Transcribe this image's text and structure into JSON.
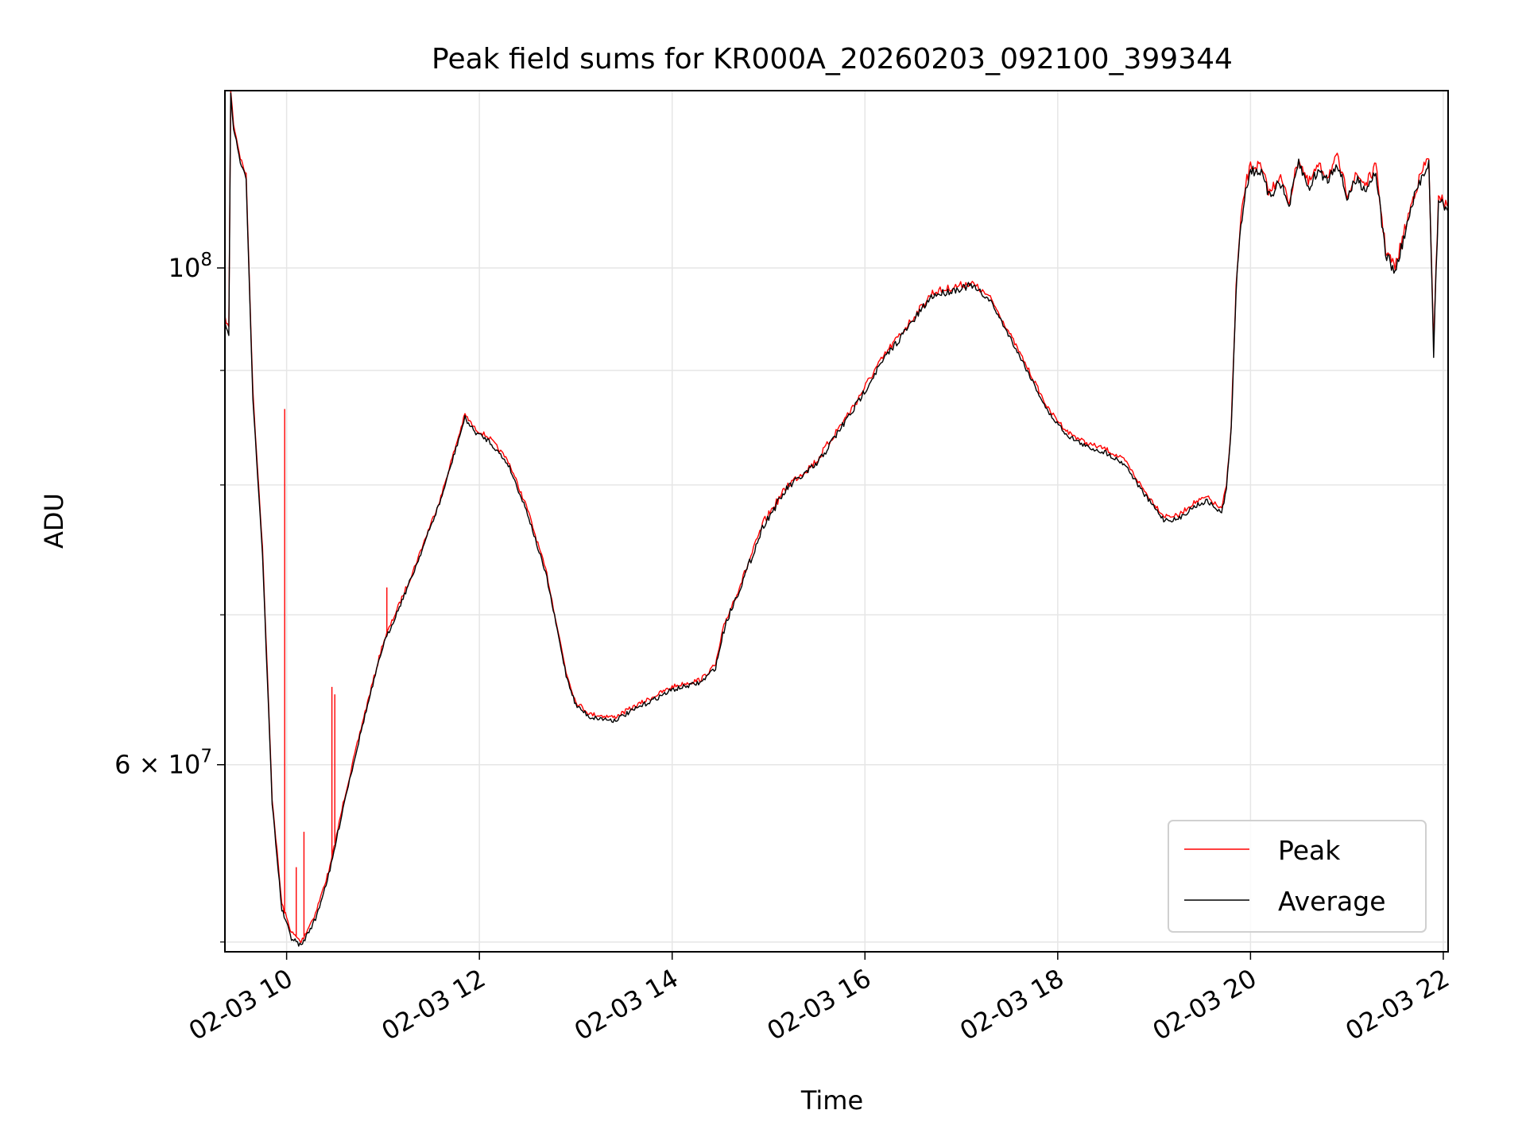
{
  "chart_data": {
    "type": "line",
    "title": "Peak field sums for KR000A_20260203_092100_399344",
    "xlabel": "Time",
    "ylabel": "ADU",
    "yscale": "log",
    "xlim": [
      9.36,
      22.05
    ],
    "ylim": [
      49500000,
      120000000
    ],
    "grid": true,
    "legend_position": "lower-right",
    "x_ticks": [
      {
        "value": 10,
        "label": "02-03 10"
      },
      {
        "value": 12,
        "label": "02-03 12"
      },
      {
        "value": 14,
        "label": "02-03 14"
      },
      {
        "value": 16,
        "label": "02-03 16"
      },
      {
        "value": 18,
        "label": "02-03 18"
      },
      {
        "value": 20,
        "label": "02-03 20"
      },
      {
        "value": 22,
        "label": "02-03 22"
      }
    ],
    "y_ticks": [
      {
        "value": 60000000,
        "base": "6 × 10",
        "exp": "7"
      },
      {
        "value": 100000000,
        "base": "10",
        "exp": "8"
      }
    ],
    "y_minor_ticks": [
      50000000,
      70000000,
      80000000,
      90000000
    ],
    "x_unit": "hours on 02-03",
    "series": [
      {
        "name": "Peak",
        "color": "#ff0000",
        "x": [
          9.36,
          9.4,
          9.42,
          9.45,
          9.52,
          9.58,
          9.65,
          9.75,
          9.85,
          9.95,
          10.05,
          10.15,
          10.3,
          10.45,
          10.6,
          10.8,
          11.0,
          11.3,
          11.6,
          11.85,
          11.95,
          12.1,
          12.3,
          12.5,
          12.7,
          12.9,
          13.0,
          13.15,
          13.4,
          13.7,
          14.0,
          14.3,
          14.45,
          14.55,
          14.75,
          14.95,
          15.2,
          15.5,
          15.7,
          15.9,
          16.1,
          16.25,
          16.5,
          16.7,
          16.9,
          17.1,
          17.3,
          17.5,
          17.7,
          17.9,
          18.1,
          18.3,
          18.5,
          18.7,
          18.9,
          19.1,
          19.25,
          19.4,
          19.55,
          19.7,
          19.75,
          19.8,
          19.85,
          19.9,
          19.95,
          20.0,
          20.1,
          20.2,
          20.3,
          20.4,
          20.5,
          20.6,
          20.7,
          20.8,
          20.9,
          21.0,
          21.1,
          21.2,
          21.3,
          21.4,
          21.5,
          21.6,
          21.7,
          21.8,
          21.85,
          21.9,
          21.95,
          22.0,
          22.05
        ],
        "values": [
          95000000,
          94000000,
          120000000,
          116000000,
          112000000,
          110000000,
          88000000,
          75000000,
          58000000,
          52000000,
          50500000,
          50000000,
          51500000,
          54000000,
          58000000,
          63000000,
          68000000,
          73000000,
          79000000,
          86000000,
          84800000,
          84000000,
          82000000,
          78000000,
          73000000,
          66000000,
          64000000,
          63200000,
          63000000,
          64000000,
          65000000,
          65500000,
          66500000,
          69500000,
          73000000,
          77000000,
          80000000,
          82000000,
          84500000,
          87000000,
          90000000,
          92000000,
          95000000,
          97500000,
          98000000,
          98500000,
          97000000,
          93500000,
          90000000,
          86500000,
          84500000,
          83500000,
          83000000,
          82000000,
          79500000,
          77500000,
          77500000,
          78500000,
          79000000,
          78000000,
          80000000,
          85000000,
          98000000,
          105000000,
          109000000,
          111000000,
          111000000,
          108000000,
          110000000,
          107000000,
          112000000,
          109000000,
          111000000,
          110000000,
          112000000,
          108000000,
          110000000,
          109000000,
          111000000,
          102000000,
          100000000,
          104000000,
          108000000,
          111000000,
          112000000,
          92000000,
          108000000,
          107000000,
          106500000
        ],
        "spikes": [
          {
            "x": 9.98,
            "peak": 86500000
          },
          {
            "x": 10.1,
            "peak": 54000000
          },
          {
            "x": 10.18,
            "peak": 56000000
          },
          {
            "x": 10.47,
            "peak": 65000000
          },
          {
            "x": 10.5,
            "peak": 64500000
          },
          {
            "x": 11.04,
            "peak": 72000000
          }
        ]
      },
      {
        "name": "Average",
        "color": "#000000",
        "x": [
          9.36,
          9.4,
          9.42,
          9.45,
          9.52,
          9.58,
          9.65,
          9.75,
          9.85,
          9.95,
          10.05,
          10.15,
          10.3,
          10.45,
          10.6,
          10.8,
          11.0,
          11.3,
          11.6,
          11.85,
          11.95,
          12.1,
          12.3,
          12.5,
          12.7,
          12.9,
          13.0,
          13.15,
          13.4,
          13.7,
          14.0,
          14.3,
          14.45,
          14.55,
          14.75,
          14.95,
          15.2,
          15.5,
          15.7,
          15.9,
          16.1,
          16.25,
          16.5,
          16.7,
          16.9,
          17.1,
          17.3,
          17.5,
          17.7,
          17.9,
          18.1,
          18.3,
          18.5,
          18.7,
          18.9,
          19.1,
          19.25,
          19.4,
          19.55,
          19.7,
          19.75,
          19.8,
          19.85,
          19.9,
          19.95,
          20.0,
          20.1,
          20.2,
          20.3,
          20.4,
          20.5,
          20.6,
          20.7,
          20.8,
          20.9,
          21.0,
          21.1,
          21.2,
          21.3,
          21.4,
          21.5,
          21.6,
          21.7,
          21.8,
          21.85,
          21.9,
          21.95,
          22.0,
          22.05
        ],
        "values": [
          94500000,
          93500000,
          119500000,
          115500000,
          111500000,
          109500000,
          87500000,
          74500000,
          57700000,
          51700000,
          50200000,
          49800000,
          51200000,
          53800000,
          57800000,
          62800000,
          67800000,
          72800000,
          78800000,
          85700000,
          84500000,
          83700000,
          81700000,
          77700000,
          72700000,
          65800000,
          63800000,
          63000000,
          62800000,
          63800000,
          64800000,
          65300000,
          66300000,
          69300000,
          72800000,
          76800000,
          79800000,
          81700000,
          84200000,
          86700000,
          89700000,
          91700000,
          94700000,
          97200000,
          97700000,
          98200000,
          96700000,
          93200000,
          89700000,
          86200000,
          84200000,
          83200000,
          82700000,
          81700000,
          79200000,
          77200000,
          77200000,
          78200000,
          78700000,
          77700000,
          79700000,
          84700000,
          97700000,
          104500000,
          108500000,
          110500000,
          110500000,
          107500000,
          109500000,
          106500000,
          111500000,
          108500000,
          110500000,
          109500000,
          111500000,
          107500000,
          109500000,
          108500000,
          110500000,
          101500000,
          99500000,
          103500000,
          107500000,
          110500000,
          111500000,
          91500000,
          107500000,
          106500000,
          106000000
        ]
      }
    ]
  }
}
